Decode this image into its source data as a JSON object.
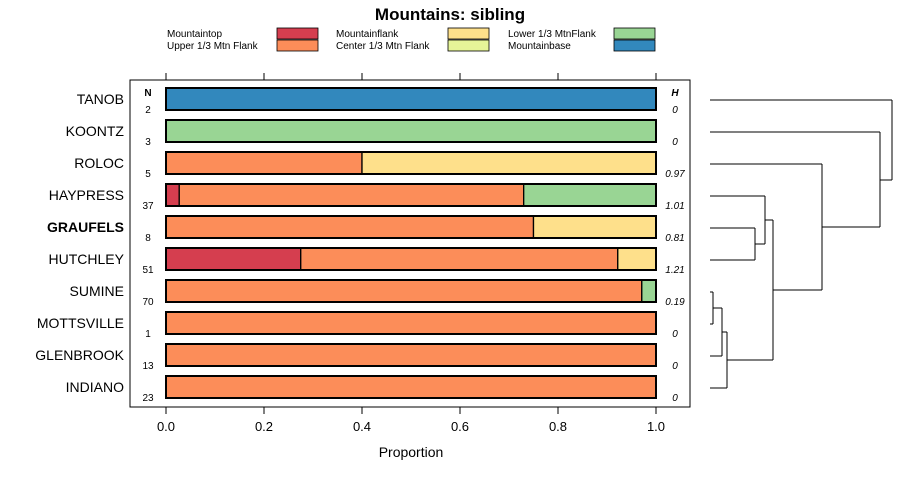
{
  "chart_data": {
    "type": "bar",
    "stacked": true,
    "orientation": "horizontal",
    "title": "Mountains: sibling",
    "xlabel": "Proportion",
    "xlim": [
      0,
      1
    ],
    "xticks": [
      0.0,
      0.2,
      0.4,
      0.6,
      0.8,
      1.0
    ],
    "xtick_labels": [
      "0.0",
      "0.2",
      "0.4",
      "0.6",
      "0.8",
      "1.0"
    ],
    "n_header": "N",
    "h_header": "H",
    "legend": [
      {
        "name": "Mountaintop",
        "color": "#d53e4f"
      },
      {
        "name": "Upper 1/3 Mtn Flank",
        "color": "#fc8d59"
      },
      {
        "name": "Mountainflank",
        "color": "#fee08b"
      },
      {
        "name": "Center 1/3 Mtn Flank",
        "color": "#e6f598"
      },
      {
        "name": "Lower 1/3 MtnFlank",
        "color": "#99d594"
      },
      {
        "name": "Mountainbase",
        "color": "#3288bd"
      }
    ],
    "categories": [
      "TANOB",
      "KOONTZ",
      "ROLOC",
      "HAYPRESS",
      "GRAUFELS",
      "HUTCHLEY",
      "SUMINE",
      "MOTTSVILLE",
      "GLENBROOK",
      "INDIANO"
    ],
    "bold_category": "GRAUFELS",
    "n": [
      "2",
      "3",
      "5",
      "37",
      "8",
      "51",
      "70",
      "1",
      "13",
      "23"
    ],
    "h": [
      "0",
      "0",
      "0.97",
      "1.01",
      "0.81",
      "1.21",
      "0.19",
      "0",
      "0",
      "0"
    ],
    "series": [
      {
        "name": "Mountaintop",
        "values": [
          0,
          0,
          0,
          0.027,
          0,
          0.275,
          0,
          0,
          0,
          0
        ]
      },
      {
        "name": "Upper 1/3 Mtn Flank",
        "values": [
          0,
          0,
          0.4,
          0.703,
          0.75,
          0.647,
          0.971,
          1,
          1,
          1
        ]
      },
      {
        "name": "Mountainflank",
        "values": [
          0,
          0,
          0.6,
          0,
          0.25,
          0.078,
          0,
          0,
          0,
          0
        ]
      },
      {
        "name": "Center 1/3 Mtn Flank",
        "values": [
          0,
          0,
          0,
          0,
          0,
          0,
          0,
          0,
          0,
          0
        ]
      },
      {
        "name": "Lower 1/3 MtnFlank",
        "values": [
          0,
          1,
          0,
          0.27,
          0,
          0,
          0.029,
          0,
          0,
          0
        ]
      },
      {
        "name": "Mountainbase",
        "values": [
          1,
          0,
          0,
          0,
          0,
          0,
          0,
          0,
          0,
          0
        ]
      }
    ]
  }
}
